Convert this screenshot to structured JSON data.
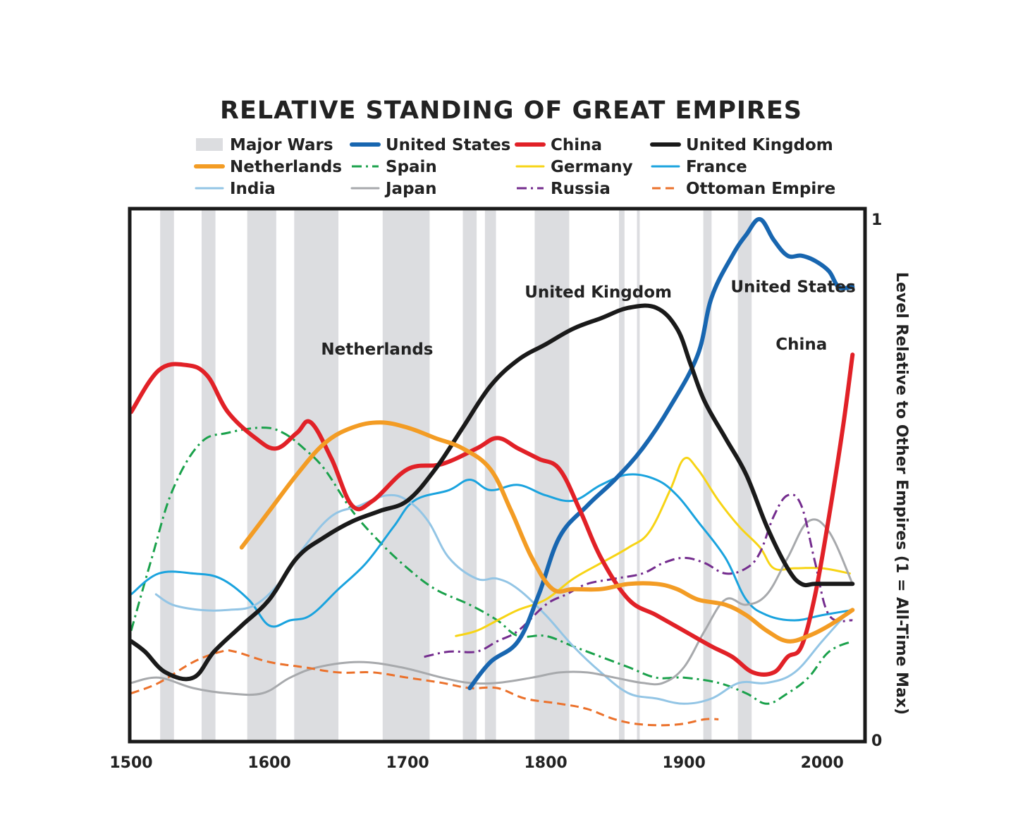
{
  "chart_data": {
    "type": "line",
    "title": "RELATIVE STANDING OF GREAT EMPIRES",
    "xlabel": "",
    "ylabel": "Level Relative to Other Empires (1 = All-Time Max)",
    "xlim": [
      1500,
      2030
    ],
    "ylim": [
      0,
      1
    ],
    "x_ticks": [
      "1500",
      "1600",
      "1700",
      "1800",
      "1900",
      "2000"
    ],
    "y_ticks": [
      "0",
      "1"
    ],
    "grid": false,
    "legend_position": "top",
    "wars_label": "Major Wars",
    "wars_color": "#dcdde0",
    "major_wars": [
      [
        1521,
        1531
      ],
      [
        1551,
        1561
      ],
      [
        1584,
        1605
      ],
      [
        1618,
        1650
      ],
      [
        1682,
        1716
      ],
      [
        1740,
        1750
      ],
      [
        1756,
        1764
      ],
      [
        1792,
        1817
      ],
      [
        1853,
        1857
      ],
      [
        1866,
        1868
      ],
      [
        1914,
        1920
      ],
      [
        1939,
        1949
      ]
    ],
    "series": [
      {
        "name": "United States",
        "color": "#1866b0",
        "width": 6,
        "dash": "solid",
        "x": [
          1745,
          1760,
          1780,
          1795,
          1810,
          1830,
          1850,
          1870,
          1890,
          1910,
          1920,
          1935,
          1945,
          1955,
          1965,
          1975,
          1985,
          1995,
          2005,
          2012,
          2022
        ],
        "y": [
          0.1,
          0.15,
          0.19,
          0.28,
          0.39,
          0.45,
          0.5,
          0.56,
          0.64,
          0.74,
          0.85,
          0.93,
          0.97,
          1.0,
          0.96,
          0.93,
          0.93,
          0.92,
          0.9,
          0.87,
          0.87
        ]
      },
      {
        "name": "China",
        "color": "#e12127",
        "width": 6,
        "dash": "solid",
        "x": [
          1500,
          1520,
          1540,
          1555,
          1570,
          1590,
          1605,
          1620,
          1630,
          1645,
          1660,
          1675,
          1700,
          1725,
          1750,
          1765,
          1780,
          1795,
          1810,
          1825,
          1840,
          1860,
          1880,
          1900,
          1920,
          1935,
          1950,
          1965,
          1975,
          1985,
          1995,
          2005,
          2015,
          2022
        ],
        "y": [
          0.63,
          0.71,
          0.72,
          0.7,
          0.63,
          0.58,
          0.56,
          0.59,
          0.61,
          0.54,
          0.45,
          0.46,
          0.52,
          0.53,
          0.56,
          0.58,
          0.56,
          0.54,
          0.52,
          0.44,
          0.35,
          0.27,
          0.24,
          0.21,
          0.18,
          0.16,
          0.13,
          0.13,
          0.16,
          0.18,
          0.28,
          0.43,
          0.6,
          0.74
        ]
      },
      {
        "name": "United Kingdom",
        "color": "#1a1a1a",
        "width": 6,
        "dash": "solid",
        "x": [
          1500,
          1510,
          1525,
          1545,
          1560,
          1580,
          1600,
          1620,
          1640,
          1660,
          1680,
          1700,
          1720,
          1740,
          1760,
          1780,
          1800,
          1820,
          1840,
          1860,
          1880,
          1895,
          1905,
          1915,
          1930,
          1945,
          1960,
          1975,
          1985,
          1995,
          2010,
          2022
        ],
        "y": [
          0.19,
          0.17,
          0.13,
          0.12,
          0.17,
          0.22,
          0.27,
          0.35,
          0.39,
          0.42,
          0.44,
          0.46,
          0.52,
          0.6,
          0.68,
          0.73,
          0.76,
          0.79,
          0.81,
          0.83,
          0.83,
          0.79,
          0.72,
          0.65,
          0.58,
          0.51,
          0.41,
          0.33,
          0.3,
          0.3,
          0.3,
          0.3
        ]
      },
      {
        "name": "Netherlands",
        "color": "#f39c24",
        "width": 6,
        "dash": "solid",
        "x": [
          1580,
          1600,
          1620,
          1640,
          1660,
          1680,
          1700,
          1720,
          1740,
          1760,
          1775,
          1790,
          1805,
          1820,
          1840,
          1860,
          1880,
          1895,
          1910,
          1930,
          1945,
          1960,
          1975,
          1990,
          2005,
          2022
        ],
        "y": [
          0.37,
          0.44,
          0.51,
          0.57,
          0.6,
          0.61,
          0.6,
          0.58,
          0.56,
          0.52,
          0.44,
          0.35,
          0.29,
          0.29,
          0.29,
          0.3,
          0.3,
          0.29,
          0.27,
          0.26,
          0.24,
          0.21,
          0.19,
          0.2,
          0.22,
          0.25
        ]
      },
      {
        "name": "Spain",
        "color": "#1aa14b",
        "width": 3,
        "dash": "14 6 3 6",
        "x": [
          1500,
          1515,
          1530,
          1550,
          1570,
          1595,
          1610,
          1625,
          1640,
          1660,
          1680,
          1700,
          1720,
          1745,
          1765,
          1780,
          1800,
          1820,
          1840,
          1860,
          1880,
          1900,
          1925,
          1945,
          1960,
          1975,
          1990,
          2005,
          2022
        ],
        "y": [
          0.21,
          0.35,
          0.48,
          0.57,
          0.59,
          0.6,
          0.59,
          0.56,
          0.52,
          0.44,
          0.38,
          0.33,
          0.29,
          0.26,
          0.23,
          0.2,
          0.2,
          0.18,
          0.16,
          0.14,
          0.12,
          0.12,
          0.11,
          0.09,
          0.07,
          0.09,
          0.12,
          0.17,
          0.19
        ]
      },
      {
        "name": "Germany",
        "color": "#f7d415",
        "width": 3,
        "dash": "solid",
        "x": [
          1735,
          1750,
          1765,
          1780,
          1800,
          1820,
          1840,
          1860,
          1875,
          1890,
          1900,
          1910,
          1925,
          1940,
          1955,
          1965,
          1980,
          2000,
          2020
        ],
        "y": [
          0.2,
          0.21,
          0.23,
          0.25,
          0.27,
          0.31,
          0.34,
          0.37,
          0.4,
          0.48,
          0.54,
          0.52,
          0.46,
          0.41,
          0.37,
          0.33,
          0.33,
          0.33,
          0.32
        ]
      },
      {
        "name": "France",
        "color": "#1aa3de",
        "width": 3,
        "dash": "solid",
        "x": [
          1500,
          1520,
          1545,
          1565,
          1585,
          1600,
          1615,
          1630,
          1650,
          1670,
          1690,
          1705,
          1730,
          1745,
          1760,
          1780,
          1800,
          1820,
          1840,
          1860,
          1880,
          1895,
          1910,
          1930,
          1945,
          1960,
          1980,
          2000,
          2022
        ],
        "y": [
          0.28,
          0.32,
          0.32,
          0.31,
          0.27,
          0.22,
          0.23,
          0.24,
          0.29,
          0.34,
          0.41,
          0.46,
          0.48,
          0.5,
          0.48,
          0.49,
          0.47,
          0.46,
          0.49,
          0.51,
          0.5,
          0.47,
          0.42,
          0.35,
          0.27,
          0.24,
          0.23,
          0.24,
          0.25
        ]
      },
      {
        "name": "India",
        "color": "#93c5e5",
        "width": 3,
        "dash": "solid",
        "x": [
          1518,
          1530,
          1550,
          1570,
          1590,
          1610,
          1625,
          1645,
          1665,
          1685,
          1700,
          1715,
          1730,
          1750,
          1765,
          1780,
          1800,
          1820,
          1840,
          1860,
          1880,
          1900,
          1920,
          1940,
          1960,
          1980,
          2000,
          2020
        ],
        "y": [
          0.28,
          0.26,
          0.25,
          0.25,
          0.26,
          0.31,
          0.37,
          0.43,
          0.45,
          0.47,
          0.46,
          0.42,
          0.35,
          0.31,
          0.31,
          0.29,
          0.24,
          0.18,
          0.13,
          0.09,
          0.08,
          0.07,
          0.08,
          0.11,
          0.11,
          0.13,
          0.19,
          0.25
        ]
      },
      {
        "name": "Japan",
        "color": "#a7a9ac",
        "width": 3,
        "dash": "solid",
        "x": [
          1500,
          1520,
          1545,
          1570,
          1595,
          1615,
          1635,
          1665,
          1695,
          1725,
          1745,
          1765,
          1790,
          1810,
          1830,
          1850,
          1870,
          1885,
          1900,
          1915,
          1930,
          1945,
          1960,
          1975,
          1990,
          2005,
          2022
        ],
        "y": [
          0.11,
          0.12,
          0.1,
          0.09,
          0.09,
          0.12,
          0.14,
          0.15,
          0.14,
          0.12,
          0.11,
          0.11,
          0.12,
          0.13,
          0.13,
          0.12,
          0.11,
          0.11,
          0.14,
          0.21,
          0.27,
          0.26,
          0.28,
          0.35,
          0.42,
          0.4,
          0.3
        ]
      },
      {
        "name": "Russia",
        "color": "#742c8e",
        "width": 3,
        "dash": "14 6 3 6",
        "x": [
          1712,
          1730,
          1750,
          1765,
          1780,
          1800,
          1815,
          1830,
          1850,
          1870,
          1885,
          1900,
          1915,
          1930,
          1945,
          1955,
          1965,
          1975,
          1985,
          1995,
          2005,
          2022
        ],
        "y": [
          0.16,
          0.17,
          0.17,
          0.19,
          0.21,
          0.26,
          0.28,
          0.3,
          0.31,
          0.32,
          0.34,
          0.35,
          0.34,
          0.32,
          0.33,
          0.36,
          0.43,
          0.47,
          0.45,
          0.34,
          0.24,
          0.23
        ]
      },
      {
        "name": "Ottoman Empire",
        "color": "#eb712b",
        "width": 3,
        "dash": "12 7",
        "x": [
          1500,
          1520,
          1545,
          1565,
          1575,
          1600,
          1625,
          1650,
          1675,
          1700,
          1725,
          1745,
          1765,
          1785,
          1810,
          1830,
          1850,
          1870,
          1895,
          1915,
          1925
        ],
        "y": [
          0.09,
          0.11,
          0.15,
          0.17,
          0.17,
          0.15,
          0.14,
          0.13,
          0.13,
          0.12,
          0.11,
          0.1,
          0.1,
          0.08,
          0.07,
          0.06,
          0.04,
          0.03,
          0.03,
          0.04,
          0.04
        ]
      }
    ],
    "annotations": [
      {
        "text": "Netherlands",
        "x": 1678,
        "y": 0.74
      },
      {
        "text": "United Kingdom",
        "x": 1838,
        "y": 0.85
      },
      {
        "text": "United States",
        "x": 1979,
        "y": 0.86
      },
      {
        "text": "China",
        "x": 1985,
        "y": 0.75
      }
    ]
  }
}
